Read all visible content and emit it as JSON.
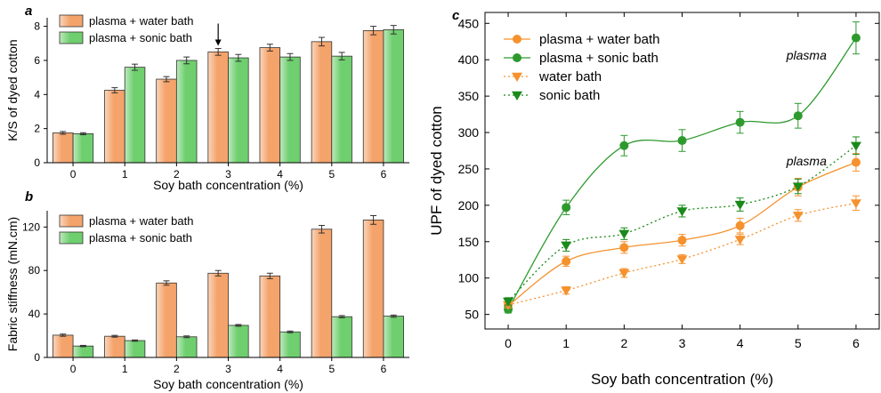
{
  "chart_data": [
    {
      "panel": "a",
      "type": "bar",
      "categories": [
        "0",
        "1",
        "2",
        "3",
        "4",
        "5",
        "6"
      ],
      "xlabel": "Soy bath concentration (%)",
      "ylabel": "K/S of dyed cotton",
      "ylim": [
        0,
        8.5
      ],
      "yticks": [
        0,
        2,
        4,
        6,
        8
      ],
      "series": [
        {
          "name": "plasma + water bath",
          "color": "#f4a36b",
          "values": [
            1.75,
            4.25,
            4.9,
            6.5,
            6.75,
            7.1,
            7.75
          ],
          "errors": [
            0.08,
            0.15,
            0.15,
            0.2,
            0.2,
            0.25,
            0.25
          ]
        },
        {
          "name": "plasma + sonic bath",
          "color": "#6fcf6f",
          "values": [
            1.7,
            5.6,
            6.0,
            6.15,
            6.2,
            6.25,
            7.8
          ],
          "errors": [
            0.06,
            0.18,
            0.2,
            0.2,
            0.2,
            0.22,
            0.25
          ]
        }
      ],
      "annotations": [
        {
          "type": "arrow",
          "category": "3"
        }
      ],
      "legend_position": "top-left",
      "grid": false
    },
    {
      "panel": "b",
      "type": "bar",
      "categories": [
        "0",
        "1",
        "2",
        "3",
        "4",
        "5",
        "6"
      ],
      "xlabel": "Soy bath concentration (%)",
      "ylabel": "Fabric stiffness (mN.cm)",
      "ylim": [
        0,
        135
      ],
      "yticks": [
        0,
        40,
        80,
        120
      ],
      "series": [
        {
          "name": "plasma + water bath",
          "color": "#f4a36b",
          "values": [
            20.5,
            19.5,
            68.5,
            77.5,
            75.0,
            118.0,
            126.5
          ],
          "errors": [
            1.0,
            0.8,
            2.0,
            2.5,
            2.5,
            3.5,
            4.0
          ]
        },
        {
          "name": "plasma + sonic bath",
          "color": "#6fcf6f",
          "values": [
            10.5,
            15.5,
            19.0,
            29.5,
            23.5,
            37.5,
            38.0
          ],
          "errors": [
            0.6,
            0.6,
            0.8,
            0.8,
            0.8,
            1.0,
            1.0
          ]
        }
      ],
      "legend_position": "top-left",
      "grid": false
    },
    {
      "panel": "c",
      "type": "line",
      "x": [
        0,
        1,
        2,
        3,
        4,
        5,
        6
      ],
      "xlabel": "Soy bath concentration (%)",
      "ylabel": "UPF of dyed cotton",
      "xlim": [
        -0.4,
        6.4
      ],
      "ylim": [
        30,
        465
      ],
      "yticks": [
        50,
        100,
        150,
        200,
        250,
        300,
        350,
        400,
        450
      ],
      "series": [
        {
          "name": "plasma + water bath",
          "color": "#f5922e",
          "marker": "circle",
          "line": "solid",
          "values": [
            62,
            123,
            142,
            152,
            172,
            225,
            259
          ],
          "errors": [
            5,
            7,
            8,
            8,
            10,
            12,
            12
          ]
        },
        {
          "name": "plasma + sonic bath",
          "color": "#2e9a2e",
          "marker": "circle",
          "line": "solid",
          "values": [
            57,
            197,
            282,
            289,
            314,
            323,
            430
          ],
          "errors": [
            5,
            10,
            14,
            15,
            15,
            17,
            22
          ]
        },
        {
          "name": "water bath",
          "color": "#f5922e",
          "marker": "triangle-down",
          "line": "dotted",
          "values": [
            63,
            83,
            107,
            126,
            153,
            186,
            203
          ],
          "errors": [
            4,
            5,
            6,
            6,
            7,
            8,
            10
          ]
        },
        {
          "name": "sonic bath",
          "color": "#1a8a1a",
          "marker": "triangle-down",
          "line": "dotted",
          "values": [
            68,
            145,
            161,
            192,
            201,
            226,
            282
          ],
          "errors": [
            5,
            8,
            8,
            8,
            9,
            10,
            12
          ]
        }
      ],
      "annotations": [
        {
          "text": "plasma",
          "x": 4.8,
          "y": 400
        },
        {
          "text": "plasma",
          "x": 4.8,
          "y": 255
        }
      ],
      "legend_position": "top-left",
      "grid": false
    }
  ]
}
